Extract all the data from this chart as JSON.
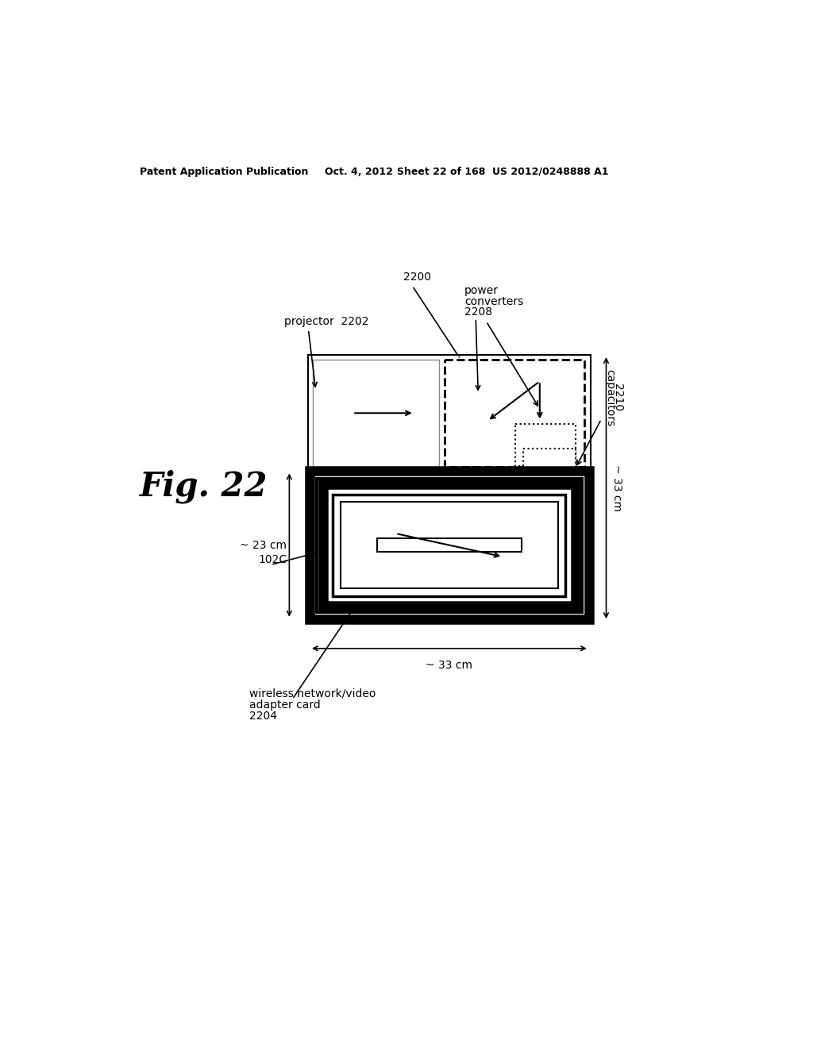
{
  "bg_color": "#ffffff",
  "header_text": "Patent Application Publication",
  "header_date": "Oct. 4, 2012",
  "header_sheet": "Sheet 22 of 168",
  "header_patent": "US 2012/0248888 A1",
  "fig_label": "Fig. 22",
  "label_2200": "2200",
  "label_2202": "projector  2202",
  "label_2208_line1": "power",
  "label_2208_line2": "converters",
  "label_2208_num": "2208",
  "label_2210_line1": "capacitors",
  "label_2210_num": "2210",
  "label_102C": "102C",
  "label_23cm": "~ 23 cm",
  "label_33cm_v": "~ 33 cm",
  "label_33cm_h": "~ 33 cm",
  "label_2204_line1": "wireless network/video",
  "label_2204_line2": "adapter card",
  "label_2204_num": "2204"
}
